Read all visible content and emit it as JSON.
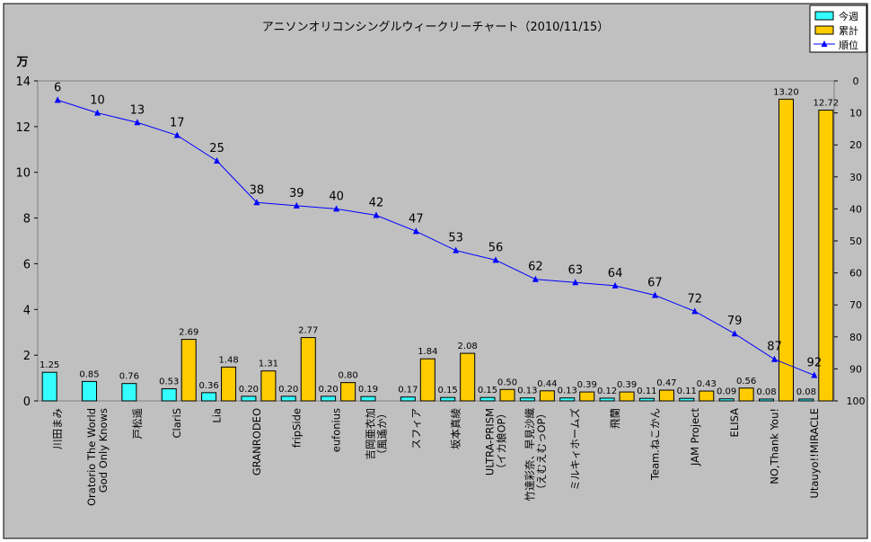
{
  "chart_data": {
    "type": "bar",
    "title": "アニソンオリコンシングルウィークリーチャート（2010/11/15）",
    "left_axis_unit": "万",
    "categories": [
      [
        "川田まみ"
      ],
      [
        "Oratorio The World",
        "God Only Knows"
      ],
      [
        "戸松遥"
      ],
      [
        "ClariS"
      ],
      [
        "Lia"
      ],
      [
        "GRANRODEO"
      ],
      [
        "fripSide"
      ],
      [
        "eufonius"
      ],
      [
        "吉岡亜衣加",
        "（風遙か）"
      ],
      [
        "スフィア"
      ],
      [
        "坂本真綾"
      ],
      [
        "ULTRA-PRISM",
        "（イカ娘OP）"
      ],
      [
        "竹達彩奈、早見沙織",
        "（えむえむっOP）"
      ],
      [
        "ミルキィホームズ"
      ],
      [
        "飛蘭"
      ],
      [
        "Team.ねこかん"
      ],
      [
        "JAM Project"
      ],
      [
        "ELISA"
      ],
      [
        "NO,Thank You!"
      ],
      [
        "Utauyo!!MIRACLE"
      ]
    ],
    "series": [
      {
        "name": "今週",
        "color": "#33ffff",
        "values": [
          1.25,
          0.85,
          0.76,
          0.53,
          0.36,
          0.2,
          0.2,
          0.2,
          0.19,
          0.17,
          0.15,
          0.15,
          0.13,
          0.13,
          0.12,
          0.11,
          0.11,
          0.09,
          0.08,
          0.08
        ],
        "labels": [
          "1.25",
          "0.85",
          "0.76",
          "0.53",
          "0.36",
          "0.20",
          "0.20",
          "0.20",
          "0.19",
          "0.17",
          "0.15",
          "0.15",
          "0.13",
          "0.13",
          "0.12",
          "0.11",
          "0.11",
          "0.09",
          "0.08",
          "0.08"
        ]
      },
      {
        "name": "累計",
        "color": "#ffcc00",
        "values": [
          null,
          null,
          null,
          2.69,
          1.48,
          1.31,
          2.77,
          0.8,
          null,
          1.84,
          2.08,
          0.5,
          0.44,
          0.39,
          0.39,
          0.47,
          0.43,
          0.56,
          13.2,
          12.72
        ],
        "labels": [
          "",
          "",
          "",
          "2.69",
          "1.48",
          "1.31",
          "2.77",
          "0.80",
          "",
          "1.84",
          "2.08",
          "0.50",
          "0.44",
          "0.39",
          "0.39",
          "0.47",
          "0.43",
          "0.56",
          "13.20",
          "12.72"
        ]
      },
      {
        "name": "順位",
        "type": "line",
        "axis": "right",
        "color": "#0000ff",
        "values": [
          6,
          10,
          13,
          17,
          25,
          38,
          39,
          40,
          42,
          47,
          53,
          56,
          62,
          63,
          64,
          67,
          72,
          79,
          87,
          92
        ]
      }
    ],
    "left_axis": {
      "min": 0,
      "max": 14,
      "ticks": [
        "0",
        "2",
        "4",
        "6",
        "8",
        "10",
        "12",
        "14"
      ]
    },
    "right_axis": {
      "min": 0,
      "max": 100,
      "reversed": true,
      "ticks": [
        "0",
        "10",
        "20",
        "30",
        "40",
        "50",
        "60",
        "70",
        "80",
        "90",
        "100"
      ]
    },
    "legend_position": "top-right",
    "plot_background": "#c0c0c0"
  }
}
